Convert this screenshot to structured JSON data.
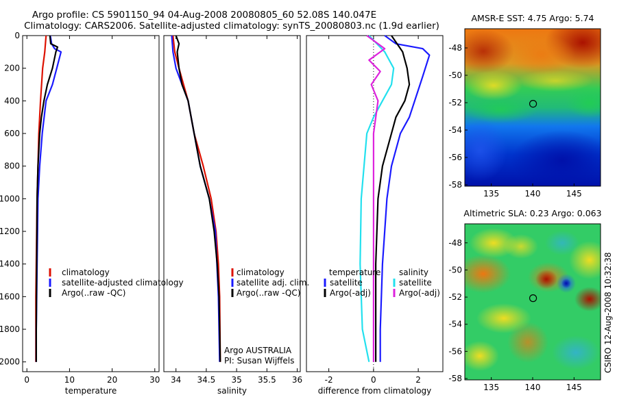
{
  "title": {
    "line1": "Argo profile: CS 5901150_94 04-Aug-2008 20080805_60 52.08S 140.047E",
    "line2": "Climatology: CARS2006. Satellite-adjusted climatology: synTS_20080803.nc (1.9d earlier)"
  },
  "side_text": "CSIRO 12-Aug-2008 10:32:38",
  "colors": {
    "climatology": "#dd1100",
    "satellite": "#1a1aff",
    "argo": "#000000",
    "sat_sal_diff": "#22e0ee",
    "argo_sal_diff": "#dd22dd"
  },
  "legends": {
    "temperature": [
      "climatology",
      "satellite-adjusted climatology",
      "Argo(..raw -QC)"
    ],
    "salinity": [
      "climatology",
      "satellite adj. clim.",
      "Argo(..raw -QC)"
    ],
    "diff_temp_header": "temperature",
    "diff_temp": [
      "satellite",
      "Argo(-adj)"
    ],
    "diff_sal_header": "salinity",
    "diff_sal": [
      "satellite",
      "Argo(-adj)"
    ]
  },
  "credit": [
    "Argo AUSTRALIA",
    "PI: Susan Wijffels"
  ],
  "map_titles": {
    "sst": "AMSR-E SST: 4.75 Argo: 5.74",
    "sla": "Altimetric SLA: 0.23 Argo: 0.063"
  },
  "map_axes": {
    "lon_ticks": [
      135,
      140,
      145
    ],
    "lat_ticks_sst": [
      -48,
      -50,
      -52,
      -54,
      -56,
      -58
    ],
    "lat_ticks_sla": [
      -48,
      -50,
      -52,
      -54,
      -56,
      -58
    ],
    "float_lon": 140.047,
    "float_lat": -52.08
  },
  "chart_data": [
    {
      "type": "line",
      "xlabel": "temperature",
      "ylabel": "",
      "xlim": [
        -1,
        31
      ],
      "ylim": [
        2060,
        0
      ],
      "xticks": [
        0,
        10,
        20,
        30
      ],
      "yticks": [
        0,
        200,
        400,
        600,
        800,
        1000,
        1200,
        1400,
        1600,
        1800,
        2000
      ],
      "series": [
        {
          "name": "climatology",
          "x": [
            4.5,
            4.2,
            3.7,
            3.2,
            2.8,
            2.6,
            2.4,
            2.3,
            2.2,
            2.1,
            2.1
          ],
          "y": [
            0,
            100,
            200,
            400,
            600,
            800,
            1000,
            1200,
            1400,
            1600,
            2000
          ]
        },
        {
          "name": "satellite-adjusted climatology",
          "x": [
            5.5,
            5.8,
            6.5,
            8.0,
            7.0,
            6.0,
            4.5,
            3.6,
            3.0,
            2.6,
            2.4,
            2.2,
            2.2
          ],
          "y": [
            0,
            50,
            80,
            100,
            200,
            300,
            400,
            600,
            800,
            1000,
            1400,
            1800,
            2000
          ]
        },
        {
          "name": "Argo(..raw -QC)",
          "x": [
            5.4,
            5.6,
            7.2,
            6.8,
            6.0,
            4.8,
            4.0,
            3.4,
            3.0,
            2.6,
            2.4,
            2.3,
            2.2,
            2.2
          ],
          "y": [
            0,
            50,
            70,
            100,
            200,
            300,
            400,
            500,
            600,
            800,
            1000,
            1400,
            1800,
            2000
          ]
        }
      ]
    },
    {
      "type": "line",
      "xlabel": "salinity",
      "ylabel": "",
      "xlim": [
        33.8,
        36.05
      ],
      "ylim": [
        2060,
        0
      ],
      "xticks": [
        34,
        34.5,
        35,
        35.5,
        36
      ],
      "yticks": [],
      "series": [
        {
          "name": "climatology",
          "x": [
            33.95,
            33.98,
            34.05,
            34.2,
            34.3,
            34.45,
            34.58,
            34.66,
            34.7,
            34.72,
            34.73
          ],
          "y": [
            0,
            100,
            200,
            400,
            600,
            800,
            1000,
            1200,
            1400,
            1600,
            2000
          ]
        },
        {
          "name": "satellite adj. clim.",
          "x": [
            33.93,
            33.95,
            34.0,
            34.1,
            34.2,
            34.3,
            34.4,
            34.55,
            34.65,
            34.7,
            34.72
          ],
          "y": [
            0,
            100,
            200,
            300,
            400,
            600,
            800,
            1000,
            1200,
            1600,
            2000
          ]
        },
        {
          "name": "Argo(..raw -QC)",
          "x": [
            34.0,
            34.05,
            34.02,
            34.05,
            34.1,
            34.2,
            34.3,
            34.4,
            34.55,
            34.63,
            34.68,
            34.71,
            34.73
          ],
          "y": [
            0,
            50,
            100,
            200,
            300,
            400,
            600,
            800,
            1000,
            1200,
            1400,
            1600,
            2000
          ]
        }
      ]
    },
    {
      "type": "line",
      "xlabel": "difference from climatology",
      "ylabel": "",
      "xlim": [
        -3,
        3.1
      ],
      "ylim": [
        2060,
        0
      ],
      "xticks": [
        -2,
        0,
        2
      ],
      "yticks": [],
      "series": [
        {
          "name": "satellite (temperature)",
          "x": [
            0.5,
            1.0,
            2.2,
            2.5,
            2.2,
            1.6,
            1.2,
            0.8,
            0.6,
            0.4,
            0.3,
            0.3
          ],
          "y": [
            0,
            50,
            80,
            120,
            250,
            500,
            600,
            800,
            1000,
            1400,
            1800,
            2000
          ]
        },
        {
          "name": "Argo(-adj) (temperature)",
          "x": [
            0.8,
            1.3,
            1.5,
            1.6,
            1.4,
            1.0,
            0.8,
            0.4,
            0.2,
            0.1,
            0.1
          ],
          "y": [
            0,
            100,
            200,
            300,
            400,
            500,
            600,
            800,
            1000,
            1400,
            2000
          ]
        },
        {
          "name": "satellite (salinity)",
          "x": [
            -0.2,
            0.5,
            0.9,
            0.8,
            0.4,
            0.0,
            -0.3,
            -0.55,
            -0.6,
            -0.5,
            -0.2
          ],
          "y": [
            0,
            100,
            200,
            300,
            400,
            500,
            600,
            1000,
            1400,
            1800,
            2000
          ]
        },
        {
          "name": "Argo(-adj) (salinity)",
          "x": [
            -0.3,
            0.5,
            -0.2,
            0.3,
            -0.1,
            0.2,
            0.0,
            0.0,
            0.0
          ],
          "y": [
            0,
            80,
            150,
            220,
            300,
            400,
            600,
            1000,
            2000
          ]
        }
      ],
      "reference_line_x": 0
    }
  ]
}
